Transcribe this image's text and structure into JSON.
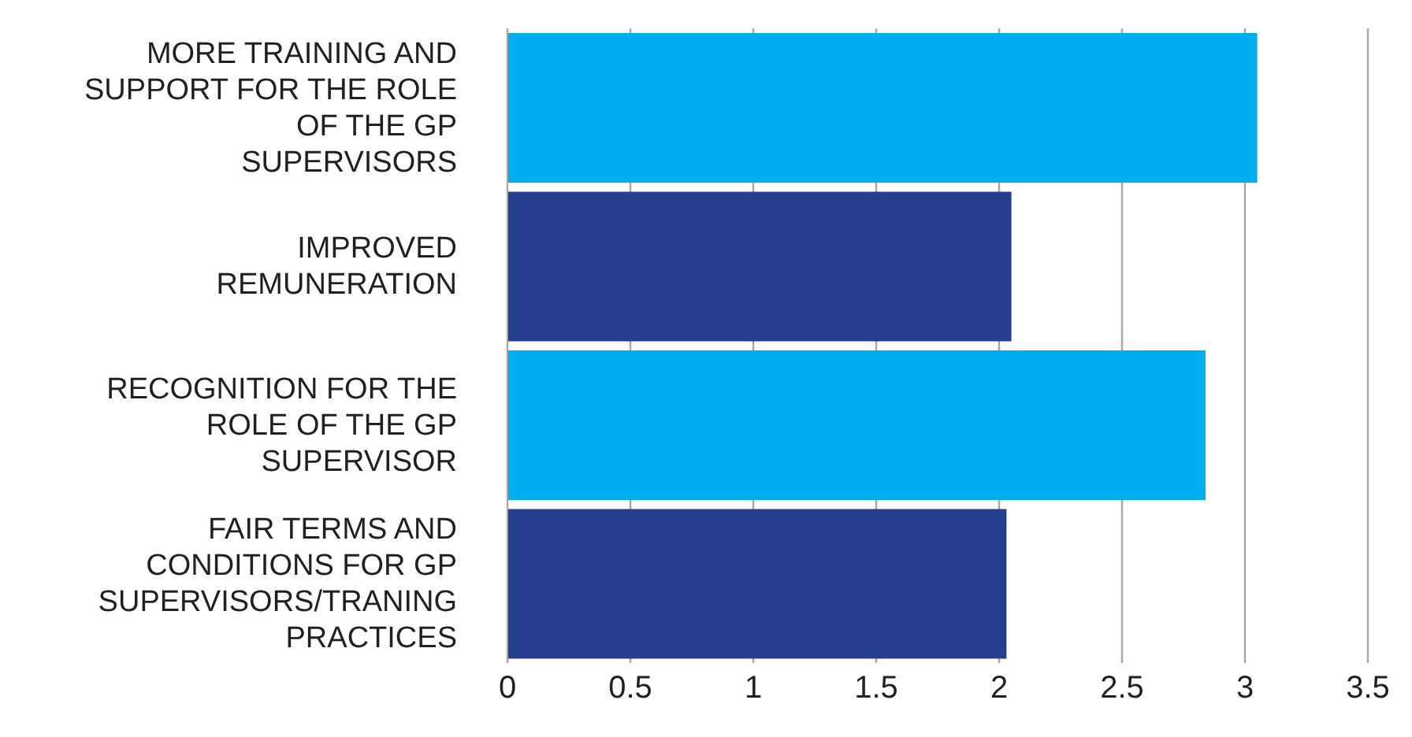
{
  "chart_data": {
    "type": "bar",
    "orientation": "horizontal",
    "categories": [
      "MORE TRAINING AND SUPPORT FOR THE ROLE OF THE GP SUPERVISORS",
      "IMPROVED REMUNERATION",
      "RECOGNITION FOR THE ROLE OF THE GP SUPERVISOR",
      "FAIR TERMS AND CONDITIONS FOR GP SUPERVISORS/TRANING PRACTICES"
    ],
    "values": [
      3.05,
      2.05,
      2.84,
      2.03
    ],
    "colors": [
      "#00aeef",
      "#253f8e",
      "#00aeef",
      "#253f8e"
    ],
    "xlim": [
      0,
      3.5
    ],
    "xticks": [
      0,
      0.5,
      1,
      1.5,
      2,
      2.5,
      3,
      3.5
    ],
    "grid": "x"
  }
}
